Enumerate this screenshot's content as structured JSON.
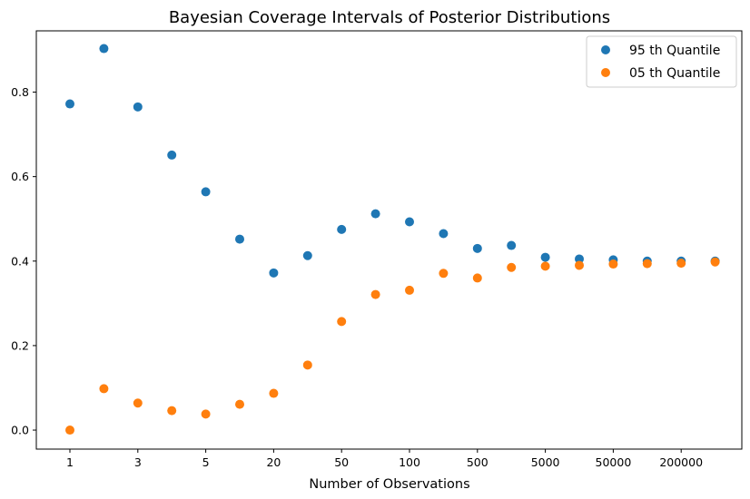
{
  "chart_data": {
    "type": "scatter",
    "title": "Bayesian Coverage Intervals of Posterior Distributions",
    "xlabel": "Number of Observations",
    "ylabel": "",
    "x_tick_labels": [
      "1",
      "3",
      "5",
      "20",
      "50",
      "100",
      "500",
      "5000",
      "50000",
      "200000"
    ],
    "y_ticks": [
      0.0,
      0.2,
      0.4,
      0.6,
      0.8
    ],
    "y_tick_labels": [
      "0.0",
      "0.2",
      "0.4",
      "0.6",
      "0.8"
    ],
    "ylim": [
      -0.045,
      0.945
    ],
    "legend_position": "upper right",
    "grid": false,
    "series": [
      {
        "name": "95 th Quantile",
        "color": "#1f77b4",
        "values": [
          0.772,
          0.903,
          0.765,
          0.651,
          0.564,
          0.452,
          0.372,
          0.413,
          0.475,
          0.512,
          0.493,
          0.465,
          0.43,
          0.437,
          0.409,
          0.405,
          0.403,
          0.4,
          0.4,
          0.4
        ]
      },
      {
        "name": "05 th Quantile",
        "color": "#ff7f0e",
        "values": [
          0.0,
          0.098,
          0.064,
          0.046,
          0.038,
          0.061,
          0.087,
          0.154,
          0.257,
          0.321,
          0.331,
          0.371,
          0.36,
          0.385,
          0.388,
          0.39,
          0.393,
          0.394,
          0.395,
          0.398
        ]
      }
    ]
  }
}
